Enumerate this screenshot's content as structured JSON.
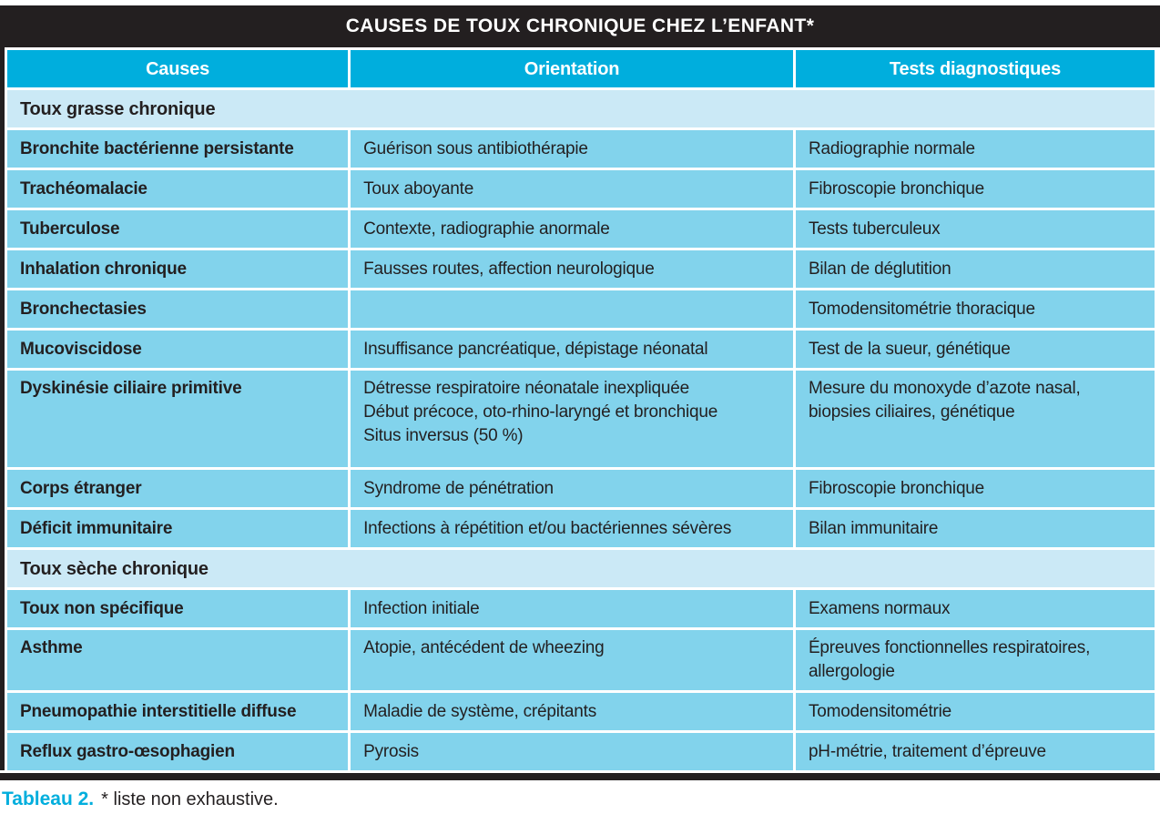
{
  "colors": {
    "accent": "#00aedd",
    "row": "#82d3ec",
    "section": "#cbe9f6",
    "frame": "#231f20"
  },
  "table": {
    "title": "CAUSES DE TOUX CHRONIQUE CHEZ L’ENFANT*",
    "columns": [
      "Causes",
      "Orientation",
      "Tests diagnostiques"
    ],
    "rows": [
      {
        "type": "section",
        "label": "Toux grasse chronique"
      },
      {
        "type": "data",
        "cause": "Bronchite bactérienne persistante",
        "orientation": "Guérison sous antibiothérapie",
        "tests": "Radiographie normale"
      },
      {
        "type": "data",
        "cause": "Trachéomalacie",
        "orientation": "Toux aboyante",
        "tests": "Fibroscopie bronchique"
      },
      {
        "type": "data",
        "cause": "Tuberculose",
        "orientation": "Contexte, radiographie anormale",
        "tests": "Tests tuberculeux"
      },
      {
        "type": "data",
        "cause": "Inhalation chronique",
        "orientation": "Fausses routes, affection neurologique",
        "tests": "Bilan de déglutition"
      },
      {
        "type": "data",
        "cause": "Bronchectasies",
        "orientation": "",
        "tests": "Tomodensitométrie thoracique"
      },
      {
        "type": "data",
        "cause": "Mucoviscidose",
        "orientation": "Insuffisance pancréatique, dépistage néonatal",
        "tests": "Test de la sueur, génétique"
      },
      {
        "type": "data",
        "cause": "Dyskinésie ciliaire primitive",
        "orientation": "Détresse respiratoire néonatale inexpliquée\nDébut précoce, oto-rhino-laryngé et bronchique\nSitus inversus (50 %)",
        "tests": "Mesure du monoxyde d’azote nasal, biopsies ciliaires, génétique",
        "multiline": true,
        "extra_space": true
      },
      {
        "type": "data",
        "cause": "Corps étranger",
        "orientation": "Syndrome de pénétration",
        "tests": "Fibroscopie bronchique"
      },
      {
        "type": "data",
        "cause": "Déficit immunitaire",
        "orientation": "Infections à répétition et/ou bactériennes sévères",
        "tests": "Bilan immunitaire"
      },
      {
        "type": "section",
        "label": "Toux sèche chronique"
      },
      {
        "type": "data",
        "cause": "Toux non spécifique",
        "orientation": "Infection initiale",
        "tests": "Examens normaux"
      },
      {
        "type": "data",
        "cause": "Asthme",
        "orientation": "Atopie, antécédent de wheezing",
        "tests": "Épreuves fonctionnelles respiratoires, allergologie",
        "multiline": true
      },
      {
        "type": "data",
        "cause": "Pneumopathie interstitielle diffuse",
        "orientation": "Maladie de système, crépitants",
        "tests": "Tomodensitométrie"
      },
      {
        "type": "data",
        "cause": "Reflux gastro-œsophagien",
        "orientation": "Pyrosis",
        "tests": "pH-métrie, traitement d’épreuve"
      }
    ]
  },
  "caption": {
    "label": "Tableau 2.",
    "note": "* liste non exhaustive."
  }
}
